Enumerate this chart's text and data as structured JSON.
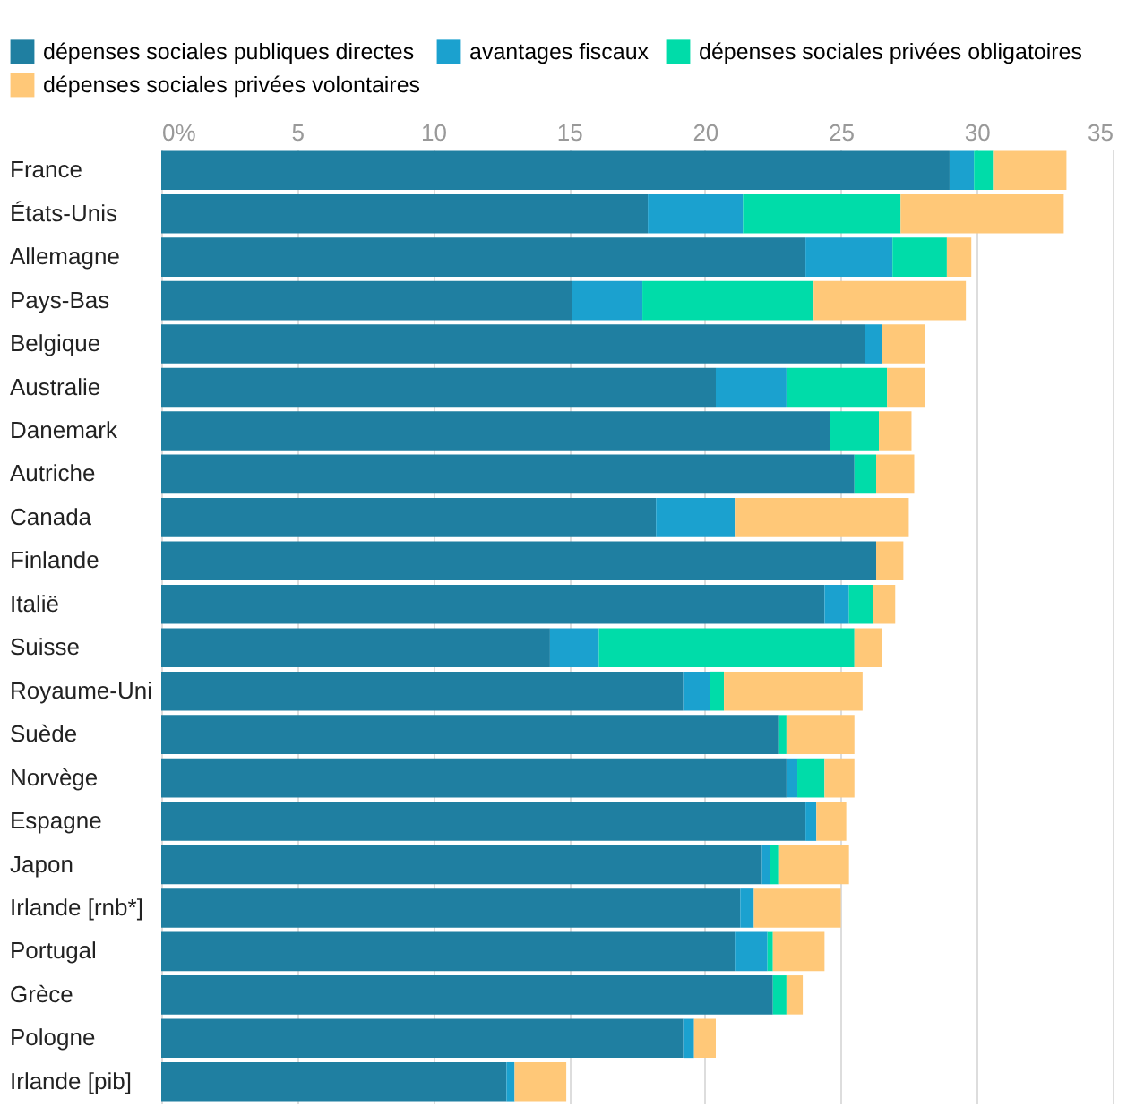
{
  "chart_data": {
    "type": "bar",
    "orientation": "horizontal",
    "stacked": true,
    "categories": [
      "France",
      "États-Unis",
      "Allemagne",
      "Pays-Bas",
      "Belgique",
      "Australie",
      "Danemark",
      "Autriche",
      "Canada",
      "Finlande",
      "Italië",
      "Suisse",
      "Royaume-Uni",
      "Suède",
      "Norvège",
      "Espagne",
      "Japon",
      "Irlande [rnb*]",
      "Portugal",
      "Grèce",
      "Pologne",
      "Irlande [pib]"
    ],
    "series": [
      {
        "name": "dépenses sociales publiques directes",
        "color": "#1f7fa1",
        "values": [
          29.0,
          17.9,
          23.7,
          15.1,
          25.9,
          20.4,
          24.6,
          25.5,
          18.2,
          26.3,
          24.4,
          14.3,
          19.2,
          22.7,
          23.0,
          23.7,
          22.1,
          21.3,
          21.1,
          22.5,
          19.2,
          12.7
        ]
      },
      {
        "name": "avantages fiscaux",
        "color": "#1ba1cf",
        "values": [
          0.9,
          3.5,
          3.2,
          2.6,
          0.6,
          2.6,
          0,
          0,
          2.9,
          0,
          0.9,
          1.8,
          1.0,
          0,
          0.4,
          0.4,
          0.3,
          0.5,
          1.2,
          0,
          0.4,
          0.3
        ]
      },
      {
        "name": "dépenses sociales privées obligatoires",
        "color": "#00dca9",
        "values": [
          0.7,
          5.8,
          2.0,
          6.3,
          0,
          3.7,
          1.8,
          0.8,
          0,
          0,
          0.9,
          9.4,
          0.5,
          0.3,
          1.0,
          0,
          0.3,
          0,
          0.2,
          0.5,
          0,
          0
        ]
      },
      {
        "name": "dépenses sociales privées volontaires",
        "color": "#ffc878",
        "values": [
          2.7,
          6.0,
          0.9,
          5.6,
          1.6,
          1.4,
          1.2,
          1.4,
          6.4,
          1.0,
          0.8,
          1.0,
          5.1,
          2.5,
          1.1,
          1.1,
          2.6,
          3.2,
          1.9,
          0.6,
          0.8,
          1.9
        ]
      }
    ],
    "xlim": [
      0,
      35
    ],
    "xticks": [
      {
        "value": 0,
        "label": "0%"
      },
      5,
      10,
      15,
      20,
      25,
      30,
      35
    ],
    "grid": "x",
    "legend": "top left"
  }
}
